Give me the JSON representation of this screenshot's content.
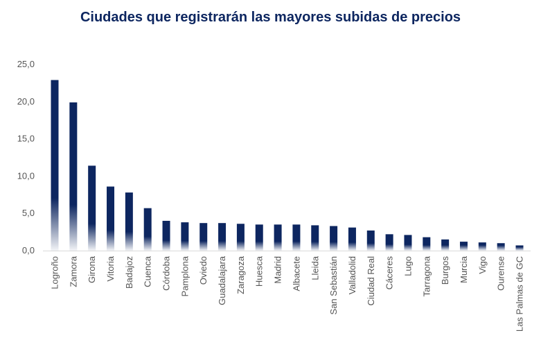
{
  "chart_data": {
    "type": "bar",
    "title": "Ciudades que registrarán las mayores subidas de precios",
    "categories": [
      "Logroño",
      "Zamora",
      "Girona",
      "Vitoria",
      "Badajoz",
      "Cuenca",
      "Córdoba",
      "Pamplona",
      "Oviedo",
      "Guadalajara",
      "Zaragoza",
      "Huesca",
      "Madrid",
      "Albacete",
      "Lleida",
      "San Sebastián",
      "Valladolid",
      "Ciudad Real",
      "Cáceres",
      "Lugo",
      "Tarragona",
      "Burgos",
      "Murcia",
      "Vigo",
      "Ourense",
      "Las Palmas de GC"
    ],
    "values": [
      22.9,
      19.9,
      11.4,
      8.6,
      7.8,
      5.7,
      4.0,
      3.8,
      3.7,
      3.7,
      3.6,
      3.5,
      3.5,
      3.5,
      3.4,
      3.3,
      3.1,
      2.7,
      2.2,
      2.1,
      1.8,
      1.5,
      1.2,
      1.1,
      1.0,
      0.7
    ],
    "ylim": [
      0,
      25
    ],
    "yticks": [
      "0,0",
      "5,0",
      "10,0",
      "15,0",
      "20,0",
      "25,0"
    ],
    "xlabel": "",
    "ylabel": "",
    "grid": false,
    "legend": "none",
    "bar_color": "#0d2660"
  }
}
